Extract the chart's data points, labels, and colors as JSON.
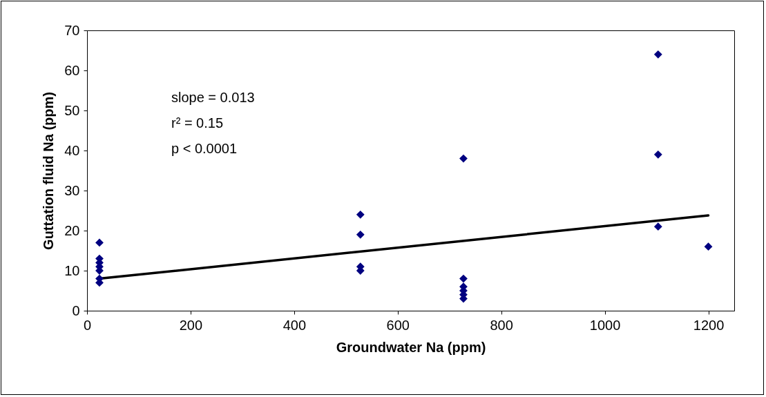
{
  "chart_data": {
    "type": "scatter",
    "xlabel": "Groundwater Na (ppm)",
    "ylabel": "Guttation fluid Na (ppm)",
    "annotations": [
      "slope = 0.013",
      "r² = 0.15",
      "p < 0.0001"
    ],
    "xlim": [
      0,
      1250
    ],
    "xticks": [
      0,
      200,
      400,
      600,
      800,
      1000,
      1200
    ],
    "ylim": [
      0,
      70
    ],
    "yticks": [
      0,
      10,
      20,
      30,
      40,
      50,
      60,
      70
    ],
    "grid": false,
    "series": [
      {
        "marker": "diamond",
        "color": "#000080",
        "x": [
          24,
          24,
          24,
          24,
          24,
          24,
          24,
          528,
          528,
          528,
          528,
          727,
          727,
          727,
          727,
          727,
          727,
          1103,
          1103,
          1103,
          1200
        ],
        "values": [
          17,
          13,
          12,
          11,
          10,
          8,
          7,
          24,
          19,
          11,
          10,
          38,
          8,
          6,
          5,
          4,
          3,
          64,
          39,
          21,
          16
        ]
      },
      {
        "type": "line",
        "color": "#000000",
        "line_style": "solid",
        "x": [
          24,
          1200
        ],
        "values": [
          8,
          23.8
        ]
      }
    ]
  }
}
